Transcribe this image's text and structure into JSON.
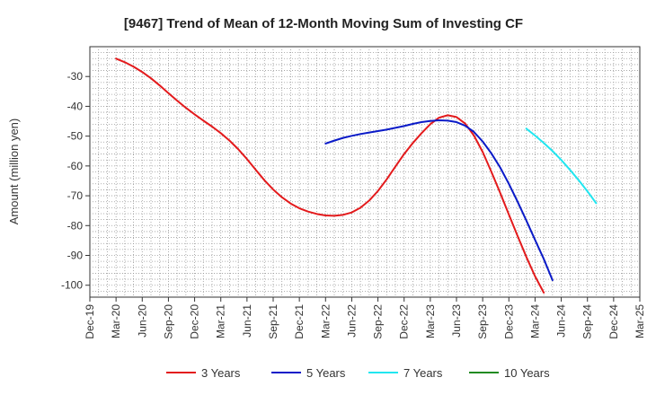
{
  "chart_data": {
    "type": "line",
    "title": "[9467]  Trend of Mean of 12-Month Moving Sum of Investing CF",
    "xlabel": "",
    "ylabel": "Amount (million yen)",
    "ylim": [
      -104,
      -20
    ],
    "yticks": [
      -30,
      -40,
      -50,
      -60,
      -70,
      -80,
      -90,
      -100
    ],
    "x_tick_labels": [
      "Dec-19",
      "Mar-20",
      "Jun-20",
      "Sep-20",
      "Dec-20",
      "Mar-21",
      "Jun-21",
      "Sep-21",
      "Dec-21",
      "Mar-22",
      "Jun-22",
      "Sep-22",
      "Dec-22",
      "Mar-23",
      "Jun-23",
      "Sep-23",
      "Dec-23",
      "Mar-24",
      "Jun-24",
      "Sep-24",
      "Dec-24",
      "Mar-25"
    ],
    "grid": true,
    "legend_position": "bottom",
    "series": [
      {
        "name": "3 Years",
        "color": "#e31a1c",
        "points": [
          [
            "Mar-20",
            -24.0
          ],
          [
            "Apr-20",
            -25.2
          ],
          [
            "May-20",
            -26.7
          ],
          [
            "Jun-20",
            -28.5
          ],
          [
            "Jul-20",
            -30.6
          ],
          [
            "Aug-20",
            -33.0
          ],
          [
            "Sep-20",
            -35.6
          ],
          [
            "Oct-20",
            -38.1
          ],
          [
            "Nov-20",
            -40.5
          ],
          [
            "Dec-20",
            -42.7
          ],
          [
            "Jan-21",
            -44.8
          ],
          [
            "Feb-21",
            -46.8
          ],
          [
            "Mar-21",
            -49.0
          ],
          [
            "Apr-21",
            -51.5
          ],
          [
            "May-21",
            -54.4
          ],
          [
            "Jun-21",
            -57.7
          ],
          [
            "Jul-21",
            -61.3
          ],
          [
            "Aug-21",
            -64.8
          ],
          [
            "Sep-21",
            -67.9
          ],
          [
            "Oct-21",
            -70.5
          ],
          [
            "Nov-21",
            -72.6
          ],
          [
            "Dec-21",
            -74.2
          ],
          [
            "Jan-22",
            -75.3
          ],
          [
            "Feb-22",
            -76.1
          ],
          [
            "Mar-22",
            -76.6
          ],
          [
            "Apr-22",
            -76.7
          ],
          [
            "May-22",
            -76.4
          ],
          [
            "Jun-22",
            -75.6
          ],
          [
            "Jul-22",
            -74.0
          ],
          [
            "Aug-22",
            -71.6
          ],
          [
            "Sep-22",
            -68.4
          ],
          [
            "Oct-22",
            -64.5
          ],
          [
            "Nov-22",
            -60.2
          ],
          [
            "Dec-22",
            -56.0
          ],
          [
            "Jan-23",
            -52.3
          ],
          [
            "Feb-23",
            -49.0
          ],
          [
            "Mar-23",
            -46.0
          ],
          [
            "Apr-23",
            -43.8
          ],
          [
            "May-23",
            -43.0
          ],
          [
            "Jun-23",
            -43.6
          ],
          [
            "Jul-23",
            -45.8
          ],
          [
            "Aug-23",
            -49.8
          ],
          [
            "Sep-23",
            -55.3
          ],
          [
            "Oct-23",
            -62.0
          ],
          [
            "Nov-23",
            -69.0
          ],
          [
            "Dec-23",
            -76.3
          ],
          [
            "Jan-24",
            -83.5
          ],
          [
            "Feb-24",
            -90.5
          ],
          [
            "Mar-24",
            -97.0
          ],
          [
            "Apr-24",
            -102.5
          ]
        ]
      },
      {
        "name": "5 Years",
        "color": "#0a1ac8",
        "points": [
          [
            "Mar-22",
            -52.5
          ],
          [
            "Apr-22",
            -51.5
          ],
          [
            "May-22",
            -50.6
          ],
          [
            "Jun-22",
            -49.9
          ],
          [
            "Jul-22",
            -49.3
          ],
          [
            "Aug-22",
            -48.8
          ],
          [
            "Sep-22",
            -48.3
          ],
          [
            "Oct-22",
            -47.8
          ],
          [
            "Nov-22",
            -47.2
          ],
          [
            "Dec-22",
            -46.6
          ],
          [
            "Jan-23",
            -45.9
          ],
          [
            "Feb-23",
            -45.3
          ],
          [
            "Mar-23",
            -44.9
          ],
          [
            "Apr-23",
            -44.7
          ],
          [
            "May-23",
            -44.8
          ],
          [
            "Jun-23",
            -45.3
          ],
          [
            "Jul-23",
            -46.5
          ],
          [
            "Aug-23",
            -48.6
          ],
          [
            "Sep-23",
            -51.8
          ],
          [
            "Oct-23",
            -55.8
          ],
          [
            "Nov-23",
            -60.5
          ],
          [
            "Dec-23",
            -66.0
          ],
          [
            "Jan-24",
            -72.0
          ],
          [
            "Feb-24",
            -78.3
          ],
          [
            "Mar-24",
            -84.8
          ],
          [
            "Apr-24",
            -91.2
          ],
          [
            "May-24",
            -98.3
          ]
        ]
      },
      {
        "name": "7 Years",
        "color": "#22e6f0",
        "points": [
          [
            "Feb-24",
            -47.5
          ],
          [
            "Mar-24",
            -49.8
          ],
          [
            "Apr-24",
            -52.3
          ],
          [
            "May-24",
            -55.0
          ],
          [
            "Jun-24",
            -58.0
          ],
          [
            "Jul-24",
            -61.3
          ],
          [
            "Aug-24",
            -64.8
          ],
          [
            "Sep-24",
            -68.5
          ],
          [
            "Oct-24",
            -72.5
          ]
        ]
      },
      {
        "name": "10 Years",
        "color": "#228b22",
        "points": []
      }
    ]
  }
}
